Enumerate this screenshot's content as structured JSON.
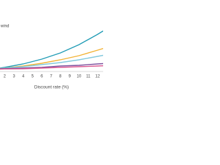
{
  "chart_data": {
    "type": "line",
    "annotation": "wind",
    "x_label": "Discount rate (%)",
    "x": [
      1.5,
      2,
      4,
      6,
      8,
      10,
      12,
      12.6
    ],
    "xlim": [
      1.5,
      12.6
    ],
    "xticks": [
      2,
      3,
      4,
      5,
      6,
      7,
      8,
      9,
      10,
      11,
      12
    ],
    "ylim": [
      0,
      70
    ],
    "series": [
      {
        "color": "#1f9bb5",
        "values": [
          5,
          6,
          11,
          18,
          27,
          39,
          54,
          59
        ]
      },
      {
        "color": "#f2b233",
        "values": [
          4.5,
          5,
          8,
          12,
          17,
          23,
          31,
          33.5
        ]
      },
      {
        "color": "#7fc8dc",
        "values": [
          4.5,
          5,
          7,
          10,
          13,
          17,
          22,
          23.5
        ]
      },
      {
        "color": "#7a4e9c",
        "values": [
          4,
          4.2,
          5,
          6,
          8,
          9,
          11,
          11.5
        ]
      },
      {
        "color": "#d9558f",
        "values": [
          3.5,
          3.7,
          4,
          5,
          6,
          7,
          8,
          8.3
        ]
      }
    ]
  }
}
